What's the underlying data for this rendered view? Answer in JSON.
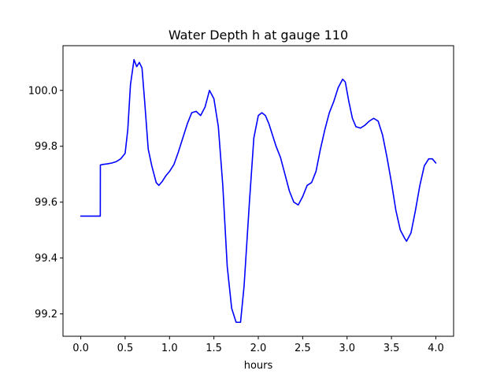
{
  "chart_data": {
    "type": "line",
    "title": "Water Depth h at gauge 110",
    "xlabel": "hours",
    "ylabel": "",
    "xlim": [
      -0.2,
      4.2
    ],
    "ylim": [
      99.12,
      100.16
    ],
    "xticks": [
      0.0,
      0.5,
      1.0,
      1.5,
      2.0,
      2.5,
      3.0,
      3.5,
      4.0
    ],
    "xtick_labels": [
      "0.0",
      "0.5",
      "1.0",
      "1.5",
      "2.0",
      "2.5",
      "3.0",
      "3.5",
      "4.0"
    ],
    "yticks": [
      99.2,
      99.4,
      99.6,
      99.8,
      100.0
    ],
    "ytick_labels": [
      "99.2",
      "99.4",
      "99.6",
      "99.8",
      "100.0"
    ],
    "grid": false,
    "series": [
      {
        "color": "#0000ff",
        "x": [
          0.0,
          0.1,
          0.22,
          0.221,
          0.25,
          0.3,
          0.35,
          0.4,
          0.45,
          0.5,
          0.53,
          0.56,
          0.6,
          0.63,
          0.66,
          0.69,
          0.72,
          0.76,
          0.8,
          0.85,
          0.88,
          0.92,
          0.96,
          1.0,
          1.05,
          1.1,
          1.15,
          1.2,
          1.25,
          1.3,
          1.35,
          1.4,
          1.45,
          1.5,
          1.55,
          1.6,
          1.65,
          1.7,
          1.75,
          1.8,
          1.84,
          1.9,
          1.95,
          2.0,
          2.04,
          2.08,
          2.12,
          2.15,
          2.2,
          2.25,
          2.3,
          2.35,
          2.4,
          2.45,
          2.5,
          2.55,
          2.6,
          2.65,
          2.7,
          2.75,
          2.8,
          2.85,
          2.9,
          2.95,
          2.98,
          3.02,
          3.06,
          3.1,
          3.15,
          3.2,
          3.25,
          3.3,
          3.35,
          3.4,
          3.45,
          3.5,
          3.55,
          3.6,
          3.65,
          3.67,
          3.72,
          3.77,
          3.82,
          3.87,
          3.92,
          3.96,
          4.0
        ],
        "y": [
          99.55,
          99.55,
          99.55,
          99.733,
          99.735,
          99.737,
          99.74,
          99.745,
          99.755,
          99.775,
          99.86,
          100.02,
          100.11,
          100.085,
          100.1,
          100.08,
          99.96,
          99.79,
          99.73,
          99.67,
          99.66,
          99.675,
          99.695,
          99.71,
          99.735,
          99.78,
          99.83,
          99.88,
          99.92,
          99.925,
          99.91,
          99.94,
          100.0,
          99.97,
          99.87,
          99.66,
          99.37,
          99.22,
          99.17,
          99.17,
          99.3,
          99.6,
          99.83,
          99.91,
          99.92,
          99.91,
          99.88,
          99.85,
          99.8,
          99.76,
          99.7,
          99.64,
          99.6,
          99.59,
          99.62,
          99.66,
          99.67,
          99.71,
          99.79,
          99.86,
          99.92,
          99.96,
          100.01,
          100.04,
          100.03,
          99.96,
          99.9,
          99.87,
          99.865,
          99.875,
          99.89,
          99.9,
          99.89,
          99.84,
          99.76,
          99.67,
          99.57,
          99.5,
          99.47,
          99.46,
          99.49,
          99.57,
          99.66,
          99.73,
          99.755,
          99.755,
          99.74
        ]
      }
    ]
  }
}
